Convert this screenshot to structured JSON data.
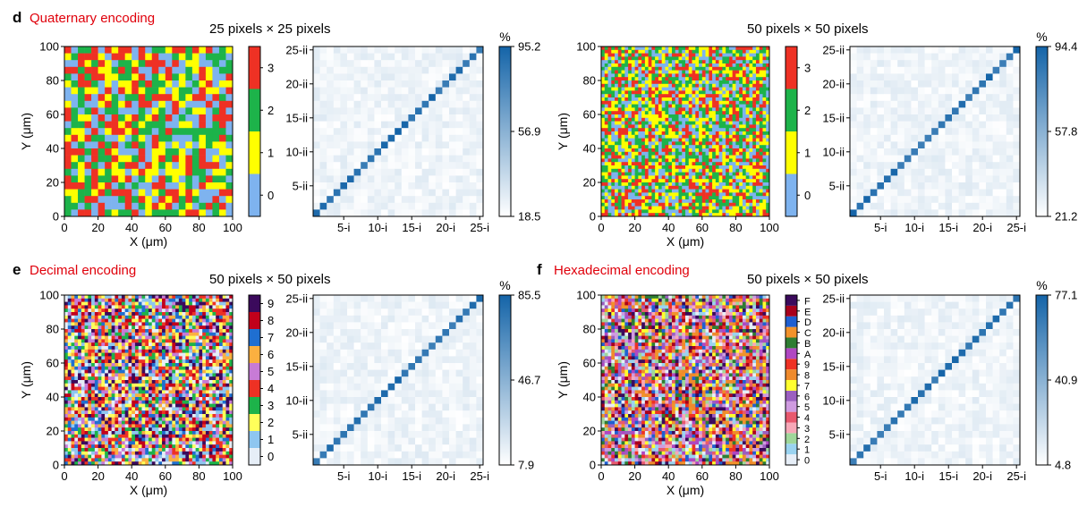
{
  "panels": {
    "d": {
      "letter": "d",
      "title": "Quaternary encoding"
    },
    "e": {
      "letter": "e",
      "title": "Decimal encoding"
    },
    "f": {
      "letter": "f",
      "title": "Hexadecimal encoding"
    }
  },
  "pixel_labels": {
    "d_left": "25 pixels × 25 pixels",
    "d_right": "50 pixels × 50 pixels",
    "e": "50 pixels × 50 pixels",
    "f": "50 pixels × 50 pixels"
  },
  "chart_data": [
    {
      "id": "map-d1",
      "type": "heatmap",
      "panel": "d",
      "title": "25 pixels × 25 pixels",
      "grid_size": 25,
      "xlabel": "X (μm)",
      "ylabel": "Y (μm)",
      "xlim": [
        0,
        100
      ],
      "ylim": [
        0,
        100
      ],
      "xticks": [
        0,
        20,
        40,
        60,
        80,
        100
      ],
      "yticks": [
        0,
        20,
        40,
        60,
        80,
        100
      ],
      "legend": {
        "labels": [
          "0",
          "1",
          "2",
          "3"
        ],
        "colors": [
          "#7eb3ef",
          "#ffff00",
          "#1db34a",
          "#ee3124"
        ]
      },
      "values": "random per-pixel symbols"
    },
    {
      "id": "conf-d1",
      "type": "heatmap",
      "panel": "d",
      "n": 25,
      "unit": "%",
      "xticks": [
        "5-i",
        "10-i",
        "15-i",
        "20-i",
        "25-i"
      ],
      "yticks": [
        "5-ii",
        "10-ii",
        "15-ii",
        "20-ii",
        "25-ii"
      ],
      "colorbar": {
        "min": "18.5",
        "mid": "56.9",
        "max": "95.2"
      },
      "diagonal": "max",
      "off_diagonal": "low"
    },
    {
      "id": "map-d2",
      "type": "heatmap",
      "panel": "d",
      "title": "50 pixels × 50 pixels",
      "grid_size": 50,
      "xlabel": "X (μm)",
      "ylabel": "Y (μm)",
      "xlim": [
        0,
        100
      ],
      "ylim": [
        0,
        100
      ],
      "xticks": [
        0,
        20,
        40,
        60,
        80,
        100
      ],
      "yticks": [
        0,
        20,
        40,
        60,
        80,
        100
      ],
      "legend": {
        "labels": [
          "0",
          "1",
          "2",
          "3"
        ],
        "colors": [
          "#7eb3ef",
          "#ffff00",
          "#1db34a",
          "#ee3124"
        ]
      },
      "values": "random per-pixel symbols"
    },
    {
      "id": "conf-d2",
      "type": "heatmap",
      "panel": "d",
      "n": 25,
      "unit": "%",
      "xticks": [
        "5-i",
        "10-i",
        "15-i",
        "20-i",
        "25-i"
      ],
      "yticks": [
        "5-ii",
        "10-ii",
        "15-ii",
        "20-ii",
        "25-ii"
      ],
      "colorbar": {
        "min": "21.2",
        "mid": "57.8",
        "max": "94.4"
      },
      "diagonal": "max",
      "off_diagonal": "low"
    },
    {
      "id": "map-e",
      "type": "heatmap",
      "panel": "e",
      "title": "50 pixels × 50 pixels",
      "grid_size": 50,
      "xlabel": "X (μm)",
      "ylabel": "Y (μm)",
      "xlim": [
        0,
        100
      ],
      "ylim": [
        0,
        100
      ],
      "xticks": [
        0,
        20,
        40,
        60,
        80,
        100
      ],
      "yticks": [
        0,
        20,
        40,
        60,
        80,
        100
      ],
      "legend": {
        "labels": [
          "0",
          "1",
          "2",
          "3",
          "4",
          "5",
          "6",
          "7",
          "8",
          "9"
        ],
        "colors": [
          "#e6eef7",
          "#8ec6f0",
          "#ffff5a",
          "#1db34a",
          "#ee3124",
          "#c77bd6",
          "#fbb040",
          "#1f6fd1",
          "#c2001b",
          "#3b0a5c"
        ]
      },
      "values": "random per-pixel symbols"
    },
    {
      "id": "conf-e",
      "type": "heatmap",
      "panel": "e",
      "n": 25,
      "unit": "%",
      "xticks": [
        "5-i",
        "10-i",
        "15-i",
        "20-i",
        "25-i"
      ],
      "yticks": [
        "5-ii",
        "10-ii",
        "15-ii",
        "20-ii",
        "25-ii"
      ],
      "colorbar": {
        "min": "7.9",
        "mid": "46.7",
        "max": "85.5"
      },
      "diagonal": "max",
      "off_diagonal": "low"
    },
    {
      "id": "map-f",
      "type": "heatmap",
      "panel": "f",
      "title": "50 pixels × 50 pixels",
      "grid_size": 50,
      "xlabel": "X (μm)",
      "ylabel": "Y (μm)",
      "xlim": [
        0,
        100
      ],
      "ylim": [
        0,
        100
      ],
      "xticks": [
        0,
        20,
        40,
        60,
        80,
        100
      ],
      "yticks": [
        0,
        20,
        40,
        60,
        80,
        100
      ],
      "legend": {
        "labels": [
          "0",
          "1",
          "2",
          "3",
          "4",
          "5",
          "6",
          "7",
          "8",
          "9",
          "A",
          "B",
          "C",
          "D",
          "E",
          "F"
        ],
        "colors": [
          "#e6eef7",
          "#9ad3f0",
          "#9fd79a",
          "#f7a8b8",
          "#e8596e",
          "#cf9be0",
          "#9b5fc0",
          "#ffff2e",
          "#ef8a2c",
          "#ee3124",
          "#b046c2",
          "#2e7d32",
          "#f2922b",
          "#1f5fd1",
          "#a8001b",
          "#3b0a5c"
        ]
      },
      "values": "random per-pixel symbols"
    },
    {
      "id": "conf-f",
      "type": "heatmap",
      "panel": "f",
      "n": 25,
      "unit": "%",
      "xticks": [
        "5-i",
        "10-i",
        "15-i",
        "20-i",
        "25-i"
      ],
      "yticks": [
        "5-ii",
        "10-ii",
        "15-ii",
        "20-ii",
        "25-ii"
      ],
      "colorbar": {
        "min": "4.8",
        "mid": "40.9",
        "max": "77.1"
      },
      "diagonal": "max",
      "off_diagonal": "low"
    }
  ]
}
